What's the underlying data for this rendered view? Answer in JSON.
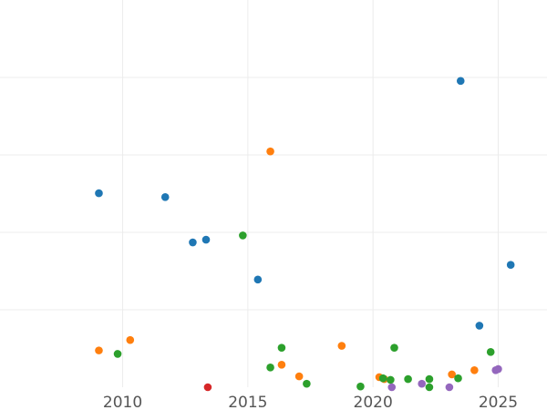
{
  "chart_data": {
    "type": "scatter",
    "title": "",
    "xlabel": "",
    "ylabel": "",
    "xlim": [
      2005.1,
      2026.95
    ],
    "ylim": [
      0,
      1
    ],
    "x_ticks": [
      2010,
      2015,
      2020,
      2025
    ],
    "y_grid_fractions": [
      0.2,
      0.4,
      0.6,
      0.8
    ],
    "grid": true,
    "legend": "none",
    "series": [
      {
        "color": "#1f77b4",
        "points": [
          {
            "x": 2009.05,
            "y": 0.501
          },
          {
            "x": 2011.7,
            "y": 0.491
          },
          {
            "x": 2012.8,
            "y": 0.374
          },
          {
            "x": 2013.33,
            "y": 0.381
          },
          {
            "x": 2015.4,
            "y": 0.278
          },
          {
            "x": 2023.5,
            "y": 0.791
          },
          {
            "x": 2024.25,
            "y": 0.159
          },
          {
            "x": 2025.5,
            "y": 0.316
          }
        ]
      },
      {
        "color": "#ff7f0e",
        "points": [
          {
            "x": 2009.05,
            "y": 0.095
          },
          {
            "x": 2010.3,
            "y": 0.122
          },
          {
            "x": 2015.9,
            "y": 0.609
          },
          {
            "x": 2016.35,
            "y": 0.058
          },
          {
            "x": 2017.05,
            "y": 0.028
          },
          {
            "x": 2018.75,
            "y": 0.107
          },
          {
            "x": 2020.25,
            "y": 0.026
          },
          {
            "x": 2020.45,
            "y": 0.021
          },
          {
            "x": 2023.15,
            "y": 0.033
          },
          {
            "x": 2024.05,
            "y": 0.044
          }
        ]
      },
      {
        "color": "#2ca02c",
        "points": [
          {
            "x": 2009.8,
            "y": 0.086
          },
          {
            "x": 2014.8,
            "y": 0.392
          },
          {
            "x": 2015.9,
            "y": 0.051
          },
          {
            "x": 2016.35,
            "y": 0.102
          },
          {
            "x": 2017.35,
            "y": 0.009
          },
          {
            "x": 2019.5,
            "y": 0.002
          },
          {
            "x": 2020.4,
            "y": 0.023
          },
          {
            "x": 2020.7,
            "y": 0.019
          },
          {
            "x": 2020.85,
            "y": 0.102
          },
          {
            "x": 2021.4,
            "y": 0.021
          },
          {
            "x": 2022.25,
            "y": 0.021
          },
          {
            "x": 2022.25,
            "y": 0.0
          },
          {
            "x": 2023.4,
            "y": 0.023
          },
          {
            "x": 2024.7,
            "y": 0.091
          }
        ]
      },
      {
        "color": "#d62728",
        "points": [
          {
            "x": 2013.4,
            "y": 0.0
          }
        ]
      },
      {
        "color": "#9467bd",
        "points": [
          {
            "x": 2020.75,
            "y": 0.0
          },
          {
            "x": 2021.95,
            "y": 0.009
          },
          {
            "x": 2023.05,
            "y": 0.0
          },
          {
            "x": 2024.9,
            "y": 0.044
          },
          {
            "x": 2025.0,
            "y": 0.047
          }
        ]
      }
    ]
  }
}
